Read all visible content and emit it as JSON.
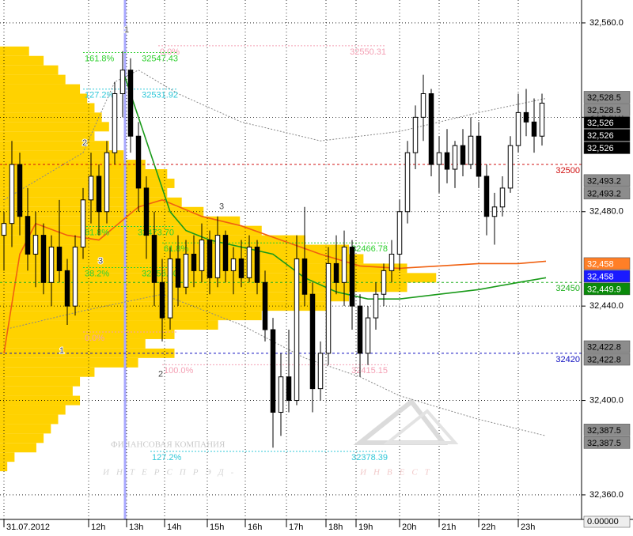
{
  "chart_data": {
    "type": "candlestick",
    "xlim": [
      -0.5,
      73
    ],
    "ylim": [
      32349.6,
      32569.7
    ],
    "yticks": [
      {
        "value": 32560,
        "label": "32,560.0"
      },
      {
        "value": 32520,
        "label": "32,520.0"
      },
      {
        "value": 32480,
        "label": "32,480.0"
      },
      {
        "value": 32440,
        "label": "32,440.0"
      },
      {
        "value": 32400,
        "label": "32,400.0"
      },
      {
        "value": 32360,
        "label": "32,360.0"
      }
    ],
    "xticks": [
      {
        "value": 0,
        "label": "31.07.2012"
      },
      {
        "value": 10.7,
        "label": "12h"
      },
      {
        "value": 15.5,
        "label": "13h"
      },
      {
        "value": 20.3,
        "label": "14h"
      },
      {
        "value": 25.7,
        "label": "15h"
      },
      {
        "value": 30.5,
        "label": "16h"
      },
      {
        "value": 35.7,
        "label": "17h"
      },
      {
        "value": 40.7,
        "label": "18h"
      },
      {
        "value": 44.5,
        "label": "19h"
      },
      {
        "value": 50,
        "label": "20h"
      },
      {
        "value": 55,
        "label": "21h"
      },
      {
        "value": 60,
        "label": "22h"
      },
      {
        "value": 65,
        "label": "23h"
      }
    ],
    "grid": true,
    "candles": [
      [
        32470,
        32480,
        32455,
        32475
      ],
      [
        32475,
        32510,
        32465,
        32500
      ],
      [
        32500,
        32505,
        32470,
        32478
      ],
      [
        32478,
        32490,
        32455,
        32462
      ],
      [
        32462,
        32480,
        32448,
        32470
      ],
      [
        32470,
        32475,
        32445,
        32450
      ],
      [
        32450,
        32470,
        32440,
        32465
      ],
      [
        32465,
        32485,
        32450,
        32455
      ],
      [
        32455,
        32460,
        32432,
        32440
      ],
      [
        32440,
        32470,
        32436,
        32465
      ],
      [
        32465,
        32490,
        32460,
        32485
      ],
      [
        32485,
        32505,
        32475,
        32495
      ],
      [
        32495,
        32500,
        32470,
        32480
      ],
      [
        32480,
        32510,
        32475,
        32505
      ],
      [
        32505,
        32535,
        32500,
        32530
      ],
      [
        32530,
        32548,
        32520,
        32540
      ],
      [
        32540,
        32545,
        32505,
        32512
      ],
      [
        32512,
        32518,
        32480,
        32490
      ],
      [
        32490,
        32495,
        32460,
        32470
      ],
      [
        32470,
        32480,
        32440,
        32450
      ],
      [
        32450,
        32460,
        32425,
        32435
      ],
      [
        32435,
        32465,
        32430,
        32460
      ],
      [
        32460,
        32470,
        32440,
        32448
      ],
      [
        32448,
        32468,
        32445,
        32462
      ],
      [
        32462,
        32470,
        32448,
        32455
      ],
      [
        32455,
        32475,
        32450,
        32468
      ],
      [
        32468,
        32472,
        32445,
        32452
      ],
      [
        32452,
        32478,
        32448,
        32470
      ],
      [
        32470,
        32472,
        32450,
        32455
      ],
      [
        32455,
        32465,
        32445,
        32460
      ],
      [
        32460,
        32468,
        32448,
        32452
      ],
      [
        32452,
        32470,
        32450,
        32465
      ],
      [
        32465,
        32468,
        32445,
        32450
      ],
      [
        32450,
        32455,
        32425,
        32430
      ],
      [
        32430,
        32435,
        32380,
        32395
      ],
      [
        32395,
        32420,
        32385,
        32410
      ],
      [
        32410,
        32430,
        32395,
        32400
      ],
      [
        32400,
        32470,
        32398,
        32460
      ],
      [
        32460,
        32482,
        32440,
        32445
      ],
      [
        32445,
        32450,
        32395,
        32405
      ],
      [
        32405,
        32425,
        32400,
        32420
      ],
      [
        32420,
        32465,
        32415,
        32458
      ],
      [
        32458,
        32470,
        32445,
        32450
      ],
      [
        32450,
        32472,
        32440,
        32465
      ],
      [
        32465,
        32468,
        32430,
        32440
      ],
      [
        32440,
        32445,
        32410,
        32420
      ],
      [
        32420,
        32440,
        32415,
        32435
      ],
      [
        32435,
        32450,
        32430,
        32445
      ],
      [
        32445,
        32458,
        32440,
        32455
      ],
      [
        32455,
        32468,
        32450,
        32462
      ],
      [
        32462,
        32485,
        32455,
        32480
      ],
      [
        32480,
        32510,
        32475,
        32505
      ],
      [
        32505,
        32525,
        32498,
        32520
      ],
      [
        32520,
        32538,
        32510,
        32530
      ],
      [
        32530,
        32532,
        32495,
        32500
      ],
      [
        32500,
        32512,
        32488,
        32505
      ],
      [
        32505,
        32515,
        32492,
        32498
      ],
      [
        32498,
        32510,
        32490,
        32508
      ],
      [
        32508,
        32515,
        32495,
        32500
      ],
      [
        32500,
        32520,
        32498,
        32512
      ],
      [
        32512,
        32518,
        32490,
        32495
      ],
      [
        32495,
        32500,
        32470,
        32478
      ],
      [
        32478,
        32488,
        32466,
        32482
      ],
      [
        32482,
        32495,
        32478,
        32490
      ],
      [
        32490,
        32512,
        32488,
        32508
      ],
      [
        32508,
        32530,
        32505,
        32522
      ],
      [
        32522,
        32532,
        32512,
        32518
      ],
      [
        32518,
        32528,
        32505,
        32512
      ],
      [
        32512,
        32530,
        32508,
        32526
      ]
    ],
    "volume_profile": {
      "color": "#ffd200",
      "xlim": [
        0,
        800
      ],
      "levels": [
        32548,
        32544,
        32540,
        32536,
        32532,
        32528,
        32524,
        32520,
        32516,
        32512,
        32508,
        32504,
        32500,
        32496,
        32492,
        32488,
        32484,
        32480,
        32476,
        32472,
        32468,
        32464,
        32460,
        32456,
        32452,
        32448,
        32444,
        32440,
        32436,
        32432,
        32428,
        32424,
        32420,
        32416,
        32412,
        32408,
        32404,
        32400,
        32396,
        32392,
        32388,
        32384,
        32380,
        32376,
        32372
      ],
      "volumes": [
        40,
        60,
        80,
        90,
        110,
        120,
        130,
        140,
        150,
        130,
        150,
        170,
        200,
        230,
        240,
        230,
        250,
        280,
        330,
        360,
        420,
        480,
        500,
        560,
        600,
        560,
        480,
        450,
        360,
        300,
        240,
        200,
        240,
        190,
        130,
        110,
        100,
        110,
        90,
        80,
        70,
        60,
        50,
        20,
        10
      ]
    },
    "lines": [
      {
        "color": "#888888",
        "dashed": true,
        "x": [
          0,
          5,
          10,
          14,
          17,
          22,
          30,
          40,
          50,
          60,
          68.5
        ],
        "values": [
          32485,
          32495,
          32505,
          32535,
          32540,
          32530,
          32518,
          32510,
          32514,
          32522,
          32528
        ]
      },
      {
        "color": "#888888",
        "dashed": true,
        "x": [
          0,
          10,
          20,
          30,
          38,
          45,
          50,
          60,
          68.5
        ],
        "values": [
          32430,
          32438,
          32445,
          32432,
          32418,
          32410,
          32402,
          32392,
          32385
        ]
      },
      {
        "color": "#f06010",
        "dashed": false,
        "x": [
          0,
          2,
          4,
          8,
          12,
          17,
          20,
          25,
          30,
          35,
          40,
          45,
          50,
          55,
          60,
          65,
          68.5
        ],
        "values": [
          32420,
          32462,
          32475,
          32470,
          32468,
          32482,
          32485,
          32478,
          32474,
          32468,
          32462,
          32457,
          32456,
          32457,
          32458,
          32458,
          32459
        ]
      },
      {
        "color": "#1a9a1a",
        "dashed": false,
        "x": [
          15,
          17,
          19,
          21,
          23,
          26,
          30,
          34,
          38,
          42,
          46,
          50,
          55,
          60,
          65,
          68.5
        ],
        "values": [
          32540,
          32520,
          32500,
          32480,
          32472,
          32468,
          32465,
          32462,
          32452,
          32446,
          32443,
          32443,
          32445,
          32447,
          32450,
          32452
        ]
      }
    ],
    "fib_levels": [
      {
        "pct": "0.0%",
        "price": 32550.31,
        "color": "#f4a0b4",
        "x": [
          19.5,
          48.3
        ]
      },
      {
        "pct": "161.8%",
        "price": 32547.43,
        "color": "#2fd02f",
        "x": [
          10,
          22
        ]
      },
      {
        "pct": "127.2%",
        "price": 32531.92,
        "color": "#30c8d8",
        "x": [
          10,
          22
        ]
      },
      {
        "pct": "61.8%",
        "price": {
          "value": 32473.7,
          "label": "32473.70"
        },
        "color": "#2fd02f",
        "x": [
          10,
          21.5
        ]
      },
      {
        "pct": "61.8%",
        "price": 32466.78,
        "color": "#2fd02f",
        "x": [
          20,
          48.5
        ]
      },
      {
        "pct": "38.2%",
        "price": {
          "value": 32456.3,
          "label": "32456.30"
        },
        "color": "#2fd02f",
        "x": [
          10,
          22
        ]
      },
      {
        "pct": "0.0%",
        "level": 32429,
        "color": "#f4a0b4",
        "x": [
          10,
          22
        ]
      },
      {
        "pct": "100.0%",
        "price": 32415.15,
        "color": "#f4a0b4",
        "x": [
          20,
          48.5
        ]
      },
      {
        "pct": "127.2%",
        "price": 32378.39,
        "color": "#30c8d8",
        "x": [
          18.5,
          48.5
        ]
      }
    ],
    "levels": [
      {
        "price": 32500,
        "color": "#d01010"
      },
      {
        "price": 32450,
        "color": "#20b020"
      },
      {
        "price": 32420,
        "color": "#1010c0"
      }
    ],
    "annotations": [
      {
        "text": "1",
        "x": 15.5,
        "y": 32557
      },
      {
        "text": "2",
        "x": 10.2,
        "y": 32509
      },
      {
        "text": "3",
        "x": 27.5,
        "y": 32482
      },
      {
        "text": "3",
        "x": 12.2,
        "y": 32459
      },
      {
        "text": "1",
        "x": 7.3,
        "y": 32421
      },
      {
        "text": "2",
        "x": 19.8,
        "y": 32411
      }
    ],
    "price_tags": [
      {
        "value": 32528.5,
        "label": "32,528.5",
        "color": "#8c8c8c"
      },
      {
        "value": 32528.5,
        "label": "32,528.5",
        "color": "#8c8c8c"
      },
      {
        "value": 32526,
        "label": "32,526",
        "color": "#000000"
      },
      {
        "value": 32526,
        "label": "32,526",
        "color": "#000000"
      },
      {
        "value": 32526,
        "label": "32,526",
        "color": "#000000"
      },
      {
        "value": 32493.2,
        "label": "32,493.2",
        "color": "#8c8c8c"
      },
      {
        "value": 32493.2,
        "label": "32,493.2",
        "color": "#8c8c8c"
      },
      {
        "value": 32458,
        "label": "32,458",
        "color": "#ff7f27"
      },
      {
        "value": 32458,
        "label": "32,458",
        "color": "#1a1aff"
      },
      {
        "value": 32449.9,
        "label": "32,449.9",
        "color": "#0a8a0a"
      },
      {
        "value": 32422.8,
        "label": "32,422.8",
        "color": "#8c8c8c"
      },
      {
        "value": 32422.8,
        "label": "32,422.8",
        "color": "#8c8c8c"
      },
      {
        "value": 32387.5,
        "label": "32,387.5",
        "color": "#8c8c8c"
      },
      {
        "value": 32387.5,
        "label": "32,387.5",
        "color": "#8c8c8c"
      }
    ],
    "indicator_value": {
      "value": 0,
      "label": "0.00000"
    },
    "watermark": {
      "company": "ФИНАНСОВАЯ КОМПАНИЯ",
      "name_1": "ИНТЕРСПРЭД-",
      "name_2": "ИНВЕСТ"
    }
  }
}
